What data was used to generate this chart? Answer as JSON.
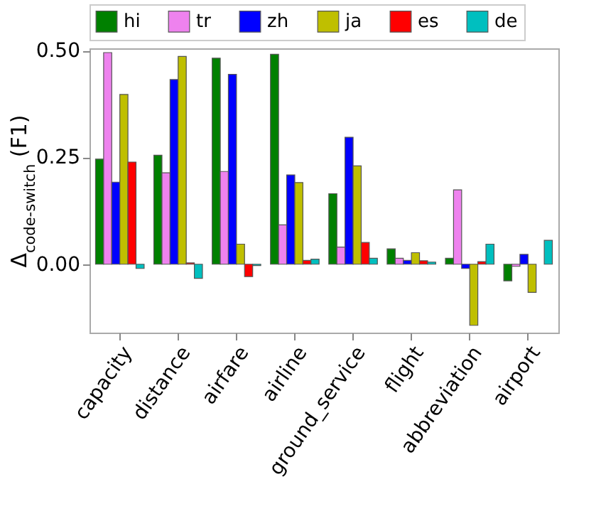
{
  "chart_data": {
    "type": "bar",
    "ylabel": "Δ$_{code-switch}$ (F1)",
    "categories": [
      "capacity",
      "distance",
      "airfare",
      "airline",
      "ground_service",
      "flight",
      "abbreviation",
      "airport"
    ],
    "series": [
      {
        "name": "hi",
        "color": "#008000",
        "values": [
          0.246,
          0.255,
          0.482,
          0.491,
          0.165,
          0.036,
          0.014,
          -0.039
        ]
      },
      {
        "name": "tr",
        "color": "#ee82ee",
        "values": [
          0.495,
          0.214,
          0.217,
          0.092,
          0.04,
          0.014,
          0.174,
          -0.005
        ]
      },
      {
        "name": "zh",
        "color": "#0000ff",
        "values": [
          0.192,
          0.432,
          0.444,
          0.209,
          0.297,
          0.009,
          -0.01,
          0.023
        ]
      },
      {
        "name": "ja",
        "color": "#bfbf00",
        "values": [
          0.397,
          0.486,
          0.047,
          0.191,
          0.23,
          0.027,
          -0.143,
          -0.066
        ]
      },
      {
        "name": "es",
        "color": "#ff0000",
        "values": [
          0.239,
          0.003,
          -0.029,
          0.009,
          0.051,
          0.008,
          0.006,
          0
        ]
      },
      {
        "name": "de",
        "color": "#00bfbf",
        "values": [
          -0.01,
          -0.033,
          -0.003,
          0.012,
          0.014,
          0.005,
          0.047,
          0.056
        ]
      }
    ],
    "ylim": [
      -0.16,
      0.505
    ],
    "yticks": [
      {
        "value": 0,
        "label": "0.00"
      },
      {
        "value": 0.25,
        "label": "0.25"
      },
      {
        "value": 0.5,
        "label": "0.50"
      }
    ],
    "grid": false,
    "legend": "top"
  }
}
